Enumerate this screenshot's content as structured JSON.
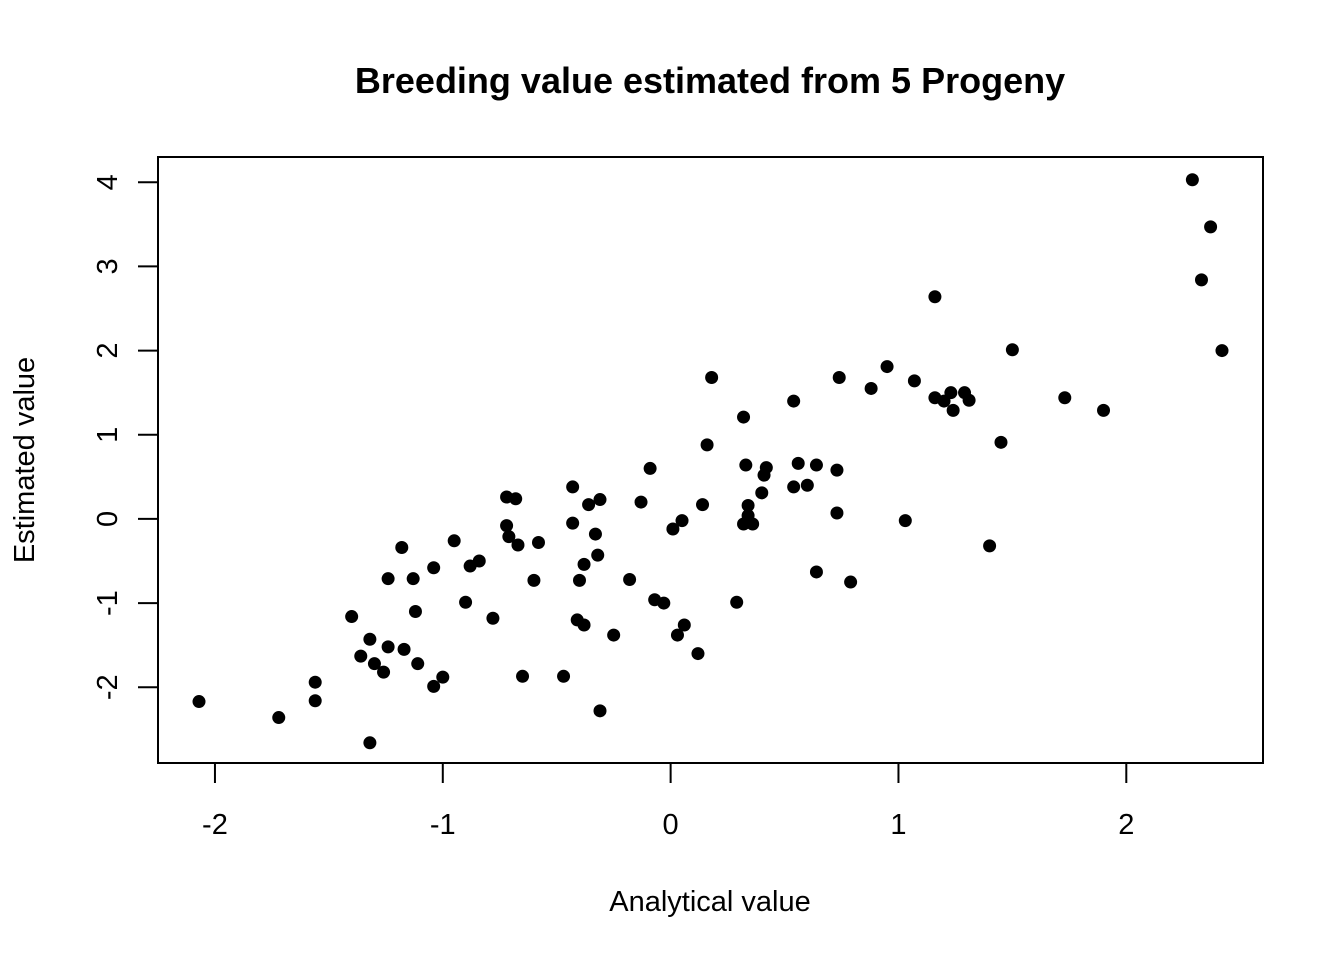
{
  "chart_data": {
    "type": "scatter",
    "title": "Breeding value estimated from 5 Progeny",
    "xlabel": "Analytical value",
    "ylabel": "Estimated value",
    "xlim": [
      -2.25,
      2.6
    ],
    "ylim": [
      -2.9,
      4.3
    ],
    "xticks": [
      -2,
      -1,
      0,
      1,
      2
    ],
    "yticks": [
      -2,
      -1,
      0,
      1,
      2,
      3,
      4
    ],
    "xticklabels": [
      "-2",
      "-1",
      "0",
      "1",
      "2"
    ],
    "yticklabels": [
      "-2",
      "-1",
      "0",
      "1",
      "2",
      "3",
      "4"
    ],
    "grid": false,
    "point_color": "#000000",
    "series": [
      {
        "points": [
          [
            -2.07,
            -2.17
          ],
          [
            -1.72,
            -2.36
          ],
          [
            -1.56,
            -1.94
          ],
          [
            -1.56,
            -2.16
          ],
          [
            -1.4,
            -1.16
          ],
          [
            -1.36,
            -1.63
          ],
          [
            -1.32,
            -1.43
          ],
          [
            -1.3,
            -1.72
          ],
          [
            -1.32,
            -2.66
          ],
          [
            -1.26,
            -1.82
          ],
          [
            -1.24,
            -1.52
          ],
          [
            -1.24,
            -0.71
          ],
          [
            -1.18,
            -0.34
          ],
          [
            -1.17,
            -1.55
          ],
          [
            -1.13,
            -0.71
          ],
          [
            -1.12,
            -1.1
          ],
          [
            -1.11,
            -1.72
          ],
          [
            -1.04,
            -1.99
          ],
          [
            -1.04,
            -0.58
          ],
          [
            -1.0,
            -1.88
          ],
          [
            -0.95,
            -0.26
          ],
          [
            -0.9,
            -0.99
          ],
          [
            -0.88,
            -0.56
          ],
          [
            -0.84,
            -0.5
          ],
          [
            -0.78,
            -1.18
          ],
          [
            -0.72,
            0.26
          ],
          [
            -0.72,
            -0.08
          ],
          [
            -0.71,
            -0.21
          ],
          [
            -0.68,
            0.24
          ],
          [
            -0.67,
            -0.31
          ],
          [
            -0.65,
            -1.87
          ],
          [
            -0.6,
            -0.73
          ],
          [
            -0.58,
            -0.28
          ],
          [
            -0.47,
            -1.87
          ],
          [
            -0.43,
            0.38
          ],
          [
            -0.43,
            -0.05
          ],
          [
            -0.41,
            -1.2
          ],
          [
            -0.4,
            -0.73
          ],
          [
            -0.38,
            -0.54
          ],
          [
            -0.38,
            -1.26
          ],
          [
            -0.36,
            0.17
          ],
          [
            -0.33,
            -0.18
          ],
          [
            -0.32,
            -0.43
          ],
          [
            -0.31,
            0.23
          ],
          [
            -0.31,
            -2.28
          ],
          [
            -0.25,
            -1.38
          ],
          [
            -0.18,
            -0.72
          ],
          [
            -0.13,
            0.2
          ],
          [
            -0.09,
            0.6
          ],
          [
            -0.07,
            -0.96
          ],
          [
            -0.03,
            -1.0
          ],
          [
            0.01,
            -0.12
          ],
          [
            0.03,
            -1.38
          ],
          [
            0.05,
            -0.02
          ],
          [
            0.06,
            -1.26
          ],
          [
            0.12,
            -1.6
          ],
          [
            0.14,
            0.17
          ],
          [
            0.16,
            0.88
          ],
          [
            0.18,
            1.68
          ],
          [
            0.29,
            -0.99
          ],
          [
            0.32,
            1.21
          ],
          [
            0.32,
            -0.06
          ],
          [
            0.33,
            0.64
          ],
          [
            0.34,
            0.16
          ],
          [
            0.34,
            0.04
          ],
          [
            0.36,
            -0.06
          ],
          [
            0.4,
            0.31
          ],
          [
            0.41,
            0.52
          ],
          [
            0.42,
            0.61
          ],
          [
            0.54,
            1.4
          ],
          [
            0.54,
            0.38
          ],
          [
            0.56,
            0.66
          ],
          [
            0.6,
            0.4
          ],
          [
            0.64,
            0.64
          ],
          [
            0.64,
            -0.63
          ],
          [
            0.73,
            0.58
          ],
          [
            0.73,
            0.07
          ],
          [
            0.74,
            1.68
          ],
          [
            0.79,
            -0.75
          ],
          [
            0.88,
            1.55
          ],
          [
            0.95,
            1.81
          ],
          [
            1.03,
            -0.02
          ],
          [
            1.07,
            1.64
          ],
          [
            1.16,
            2.64
          ],
          [
            1.16,
            1.44
          ],
          [
            1.2,
            1.4
          ],
          [
            1.23,
            1.5
          ],
          [
            1.24,
            1.29
          ],
          [
            1.29,
            1.5
          ],
          [
            1.31,
            1.41
          ],
          [
            1.4,
            -0.32
          ],
          [
            1.45,
            0.91
          ],
          [
            1.5,
            2.01
          ],
          [
            1.73,
            1.44
          ],
          [
            1.9,
            1.29
          ],
          [
            2.29,
            4.03
          ],
          [
            2.33,
            2.84
          ],
          [
            2.37,
            3.47
          ],
          [
            2.42,
            2.0
          ]
        ]
      }
    ]
  }
}
